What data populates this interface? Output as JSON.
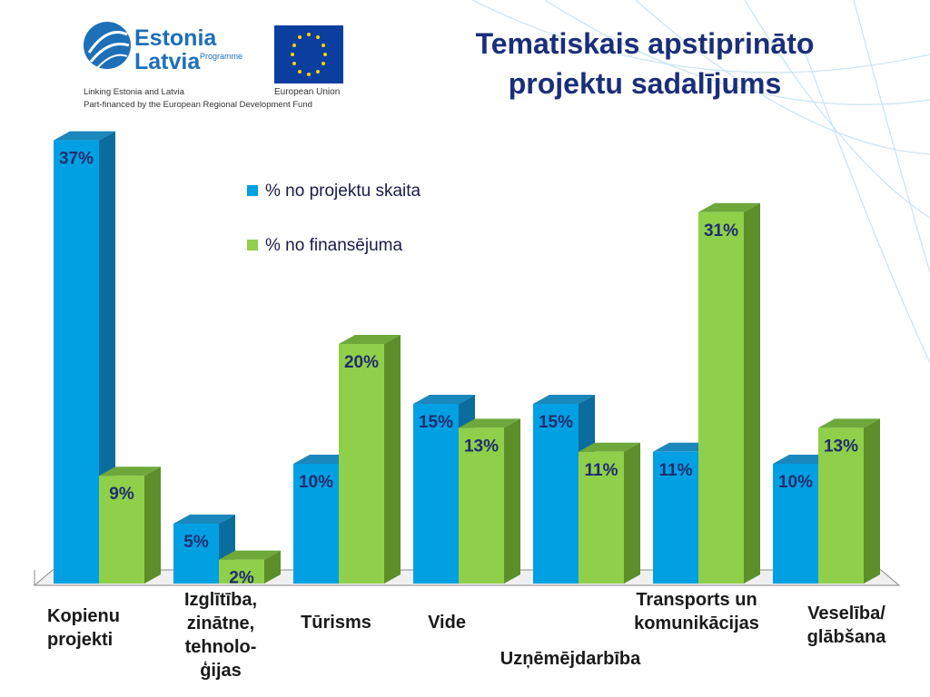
{
  "slide": {
    "title": "Tematiskais apstiprināto\nprojektu sadalījums"
  },
  "logo": {
    "line1": "Estonia",
    "line2": "Latvia",
    "programme": "Programme",
    "eu_label": "European Union",
    "tagline1": "Linking Estonia and Latvia",
    "tagline2": "Part-financed by the European Regional Development Fund"
  },
  "colors": {
    "series1": "#00a0e3",
    "series2": "#8fcf4a",
    "title": "#1a2e7a"
  },
  "chart_data": {
    "type": "bar",
    "categories": [
      "Kopienu\nprojekti",
      "Izglītība,\nzinātne,\ntehnolo-\nģijas",
      "Tūrisms",
      "Vide",
      "Uzņēmējdarbība",
      "Transports un\nkomunikācijas",
      "Veselība/\nglābšana"
    ],
    "series": [
      {
        "name": "% no projektu skaita",
        "values": [
          37,
          5,
          10,
          15,
          15,
          11,
          10
        ]
      },
      {
        "name": "% no finansējuma",
        "values": [
          9,
          2,
          20,
          13,
          11,
          31,
          13
        ]
      }
    ],
    "value_labels_suffix": "%",
    "ylim": [
      0,
      40
    ],
    "legend_position": "top-center",
    "grid": false
  }
}
